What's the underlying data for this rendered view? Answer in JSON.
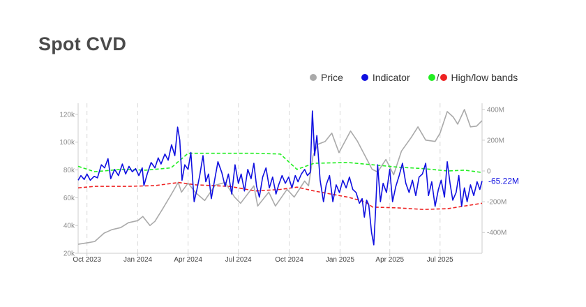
{
  "title": "Spot CVD",
  "legend": {
    "price": "Price",
    "indicator": "Indicator",
    "bands_slash": "/",
    "bands": "High/low bands"
  },
  "colors": {
    "price": "#aaaaaa",
    "indicator": "#1010e0",
    "band_high": "#22ee22",
    "band_low": "#ee2222",
    "axis": "#cccccc",
    "vgrid": "#d8d8d8"
  },
  "chart_data": {
    "type": "line",
    "x_ticks": [
      {
        "label": "Oct 2023",
        "date": "2023-10-01"
      },
      {
        "label": "Jan 2024",
        "date": "2024-01-01"
      },
      {
        "label": "Apr 2024",
        "date": "2024-04-01"
      },
      {
        "label": "Jul 2024",
        "date": "2024-07-01"
      },
      {
        "label": "Oct 2024",
        "date": "2024-10-01"
      },
      {
        "label": "Jan 2025",
        "date": "2025-01-01"
      },
      {
        "label": "Apr 2025",
        "date": "2025-04-01"
      },
      {
        "label": "Jul 2025",
        "date": "2025-07-01"
      }
    ],
    "x_range": [
      "2023-09-15",
      "2025-09-15"
    ],
    "left_axis": {
      "ticks": [
        {
          "label": "20k",
          "value": 20000
        },
        {
          "label": "40k",
          "value": 40000
        },
        {
          "label": "60k",
          "value": 60000
        },
        {
          "label": "80k",
          "value": 80000
        },
        {
          "label": "100k",
          "value": 100000
        },
        {
          "label": "120k",
          "value": 120000
        }
      ],
      "range": [
        20000,
        128000
      ]
    },
    "right_axis": {
      "ticks": [
        {
          "label": "400M",
          "value": 400
        },
        {
          "label": "200M",
          "value": 200
        },
        {
          "label": "0",
          "value": 0
        },
        {
          "label": "-200M",
          "value": -200
        },
        {
          "label": "-400M",
          "value": -400
        }
      ],
      "range": [
        -535,
        440
      ],
      "unit": "M"
    },
    "last_value_label": "-65.22M",
    "series": [
      {
        "name": "Price",
        "axis": "left",
        "points": [
          [
            "2023-09-15",
            26500
          ],
          [
            "2023-10-01",
            27500
          ],
          [
            "2023-10-15",
            28500
          ],
          [
            "2023-11-01",
            34500
          ],
          [
            "2023-11-15",
            37000
          ],
          [
            "2023-12-01",
            38500
          ],
          [
            "2023-12-15",
            42000
          ],
          [
            "2024-01-01",
            43500
          ],
          [
            "2024-01-10",
            46500
          ],
          [
            "2024-01-23",
            40000
          ],
          [
            "2024-02-01",
            43000
          ],
          [
            "2024-02-15",
            52000
          ],
          [
            "2024-03-01",
            62000
          ],
          [
            "2024-03-14",
            71000
          ],
          [
            "2024-03-20",
            64000
          ],
          [
            "2024-04-01",
            70500
          ],
          [
            "2024-04-15",
            63500
          ],
          [
            "2024-05-01",
            58000
          ],
          [
            "2024-05-20",
            69000
          ],
          [
            "2024-06-07",
            71000
          ],
          [
            "2024-06-24",
            60500
          ],
          [
            "2024-07-05",
            56000
          ],
          [
            "2024-07-29",
            68500
          ],
          [
            "2024-08-05",
            54000
          ],
          [
            "2024-08-25",
            64000
          ],
          [
            "2024-09-06",
            54000
          ],
          [
            "2024-09-27",
            66000
          ],
          [
            "2024-10-10",
            60500
          ],
          [
            "2024-10-29",
            72000
          ],
          [
            "2024-11-05",
            68500
          ],
          [
            "2024-11-13",
            90000
          ],
          [
            "2024-11-22",
            98500
          ],
          [
            "2024-12-05",
            100500
          ],
          [
            "2024-12-17",
            106500
          ],
          [
            "2024-12-30",
            92500
          ],
          [
            "2025-01-20",
            108000
          ],
          [
            "2025-02-01",
            101000
          ],
          [
            "2025-02-28",
            80500
          ],
          [
            "2025-03-10",
            78500
          ],
          [
            "2025-03-25",
            87500
          ],
          [
            "2025-04-08",
            76500
          ],
          [
            "2025-04-22",
            93500
          ],
          [
            "2025-05-10",
            103500
          ],
          [
            "2025-05-22",
            111000
          ],
          [
            "2025-06-05",
            101500
          ],
          [
            "2025-06-22",
            100500
          ],
          [
            "2025-07-01",
            106500
          ],
          [
            "2025-07-14",
            122000
          ],
          [
            "2025-07-25",
            118000
          ],
          [
            "2025-08-02",
            113000
          ],
          [
            "2025-08-14",
            123500
          ],
          [
            "2025-08-25",
            111000
          ],
          [
            "2025-09-05",
            111500
          ],
          [
            "2025-09-15",
            115500
          ]
        ]
      },
      {
        "name": "Indicator",
        "axis": "right",
        "points": [
          [
            "2023-09-15",
            -60
          ],
          [
            "2023-09-20",
            -30
          ],
          [
            "2023-09-26",
            -55
          ],
          [
            "2023-10-01",
            -20
          ],
          [
            "2023-10-07",
            -60
          ],
          [
            "2023-10-14",
            -35
          ],
          [
            "2023-10-20",
            -45
          ],
          [
            "2023-10-27",
            40
          ],
          [
            "2023-11-02",
            20
          ],
          [
            "2023-11-08",
            80
          ],
          [
            "2023-11-13",
            -50
          ],
          [
            "2023-11-20",
            10
          ],
          [
            "2023-11-27",
            -30
          ],
          [
            "2023-12-04",
            45
          ],
          [
            "2023-12-10",
            -20
          ],
          [
            "2023-12-16",
            30
          ],
          [
            "2023-12-22",
            -5
          ],
          [
            "2023-12-28",
            15
          ],
          [
            "2024-01-03",
            -30
          ],
          [
            "2024-01-09",
            20
          ],
          [
            "2024-01-12",
            -95
          ],
          [
            "2024-01-18",
            -20
          ],
          [
            "2024-01-25",
            55
          ],
          [
            "2024-02-01",
            20
          ],
          [
            "2024-02-07",
            85
          ],
          [
            "2024-02-12",
            45
          ],
          [
            "2024-02-19",
            110
          ],
          [
            "2024-02-25",
            70
          ],
          [
            "2024-03-02",
            170
          ],
          [
            "2024-03-08",
            100
          ],
          [
            "2024-03-13",
            285
          ],
          [
            "2024-03-17",
            200
          ],
          [
            "2024-03-21",
            -60
          ],
          [
            "2024-03-26",
            40
          ],
          [
            "2024-04-01",
            10
          ],
          [
            "2024-04-06",
            120
          ],
          [
            "2024-04-12",
            -200
          ],
          [
            "2024-04-17",
            -120
          ],
          [
            "2024-04-22",
            -30
          ],
          [
            "2024-04-28",
            100
          ],
          [
            "2024-05-03",
            -70
          ],
          [
            "2024-05-08",
            -20
          ],
          [
            "2024-05-13",
            -180
          ],
          [
            "2024-05-19",
            -60
          ],
          [
            "2024-05-25",
            60
          ],
          [
            "2024-06-01",
            -10
          ],
          [
            "2024-06-07",
            -100
          ],
          [
            "2024-06-13",
            -20
          ],
          [
            "2024-06-19",
            -150
          ],
          [
            "2024-06-25",
            40
          ],
          [
            "2024-07-01",
            -80
          ],
          [
            "2024-07-06",
            -20
          ],
          [
            "2024-07-12",
            -130
          ],
          [
            "2024-07-18",
            10
          ],
          [
            "2024-07-24",
            -50
          ],
          [
            "2024-07-29",
            50
          ],
          [
            "2024-08-03",
            -100
          ],
          [
            "2024-08-08",
            -170
          ],
          [
            "2024-08-14",
            -40
          ],
          [
            "2024-08-20",
            20
          ],
          [
            "2024-08-26",
            -110
          ],
          [
            "2024-09-01",
            -40
          ],
          [
            "2024-09-07",
            -150
          ],
          [
            "2024-09-12",
            -90
          ],
          [
            "2024-09-18",
            -30
          ],
          [
            "2024-09-24",
            -80
          ],
          [
            "2024-09-30",
            -40
          ],
          [
            "2024-10-06",
            -110
          ],
          [
            "2024-10-12",
            -30
          ],
          [
            "2024-10-17",
            -70
          ],
          [
            "2024-10-23",
            -20
          ],
          [
            "2024-10-29",
            10
          ],
          [
            "2024-11-03",
            -30
          ],
          [
            "2024-11-08",
            -10
          ],
          [
            "2024-11-12",
            390
          ],
          [
            "2024-11-16",
            100
          ],
          [
            "2024-11-20",
            230
          ],
          [
            "2024-11-26",
            -60
          ],
          [
            "2024-12-02",
            -200
          ],
          [
            "2024-12-07",
            -90
          ],
          [
            "2024-12-13",
            -30
          ],
          [
            "2024-12-19",
            -200
          ],
          [
            "2024-12-25",
            -90
          ],
          [
            "2024-12-31",
            -140
          ],
          [
            "2025-01-06",
            -60
          ],
          [
            "2025-01-12",
            -110
          ],
          [
            "2025-01-18",
            -40
          ],
          [
            "2025-01-24",
            -120
          ],
          [
            "2025-01-30",
            -140
          ],
          [
            "2025-02-05",
            -210
          ],
          [
            "2025-02-10",
            -180
          ],
          [
            "2025-02-14",
            -300
          ],
          [
            "2025-02-18",
            -190
          ],
          [
            "2025-02-22",
            -220
          ],
          [
            "2025-02-27",
            -400
          ],
          [
            "2025-03-03",
            -480
          ],
          [
            "2025-03-06",
            -280
          ],
          [
            "2025-03-10",
            40
          ],
          [
            "2025-03-15",
            -200
          ],
          [
            "2025-03-20",
            -80
          ],
          [
            "2025-03-26",
            -140
          ],
          [
            "2025-04-01",
            10
          ],
          [
            "2025-04-06",
            -200
          ],
          [
            "2025-04-12",
            -100
          ],
          [
            "2025-04-18",
            -30
          ],
          [
            "2025-04-24",
            50
          ],
          [
            "2025-04-30",
            -80
          ],
          [
            "2025-05-06",
            -140
          ],
          [
            "2025-05-12",
            -60
          ],
          [
            "2025-05-18",
            -160
          ],
          [
            "2025-05-24",
            -40
          ],
          [
            "2025-05-30",
            -20
          ],
          [
            "2025-06-05",
            50
          ],
          [
            "2025-06-10",
            -160
          ],
          [
            "2025-06-16",
            -70
          ],
          [
            "2025-06-22",
            -230
          ],
          [
            "2025-06-28",
            -120
          ],
          [
            "2025-07-03",
            -60
          ],
          [
            "2025-07-09",
            -170
          ],
          [
            "2025-07-14",
            60
          ],
          [
            "2025-07-19",
            -80
          ],
          [
            "2025-07-24",
            -190
          ],
          [
            "2025-07-30",
            -140
          ],
          [
            "2025-08-04",
            -30
          ],
          [
            "2025-08-09",
            -230
          ],
          [
            "2025-08-14",
            -110
          ],
          [
            "2025-08-19",
            -200
          ],
          [
            "2025-08-25",
            -90
          ],
          [
            "2025-08-31",
            -160
          ],
          [
            "2025-09-06",
            -70
          ],
          [
            "2025-09-11",
            -120
          ],
          [
            "2025-09-15",
            -65
          ]
        ]
      },
      {
        "name": "High band",
        "axis": "right",
        "points": [
          [
            "2023-09-15",
            30
          ],
          [
            "2023-10-15",
            -5
          ],
          [
            "2023-12-01",
            10
          ],
          [
            "2024-01-15",
            5
          ],
          [
            "2024-03-01",
            20
          ],
          [
            "2024-04-01",
            115
          ],
          [
            "2024-06-01",
            115
          ],
          [
            "2024-08-01",
            115
          ],
          [
            "2024-09-15",
            110
          ],
          [
            "2024-10-15",
            10
          ],
          [
            "2024-11-15",
            50
          ],
          [
            "2025-01-15",
            55
          ],
          [
            "2025-03-01",
            40
          ],
          [
            "2025-04-15",
            25
          ],
          [
            "2025-06-01",
            15
          ],
          [
            "2025-07-15",
            0
          ],
          [
            "2025-08-15",
            5
          ],
          [
            "2025-09-15",
            -10
          ]
        ]
      },
      {
        "name": "Low band",
        "axis": "right",
        "points": [
          [
            "2023-09-15",
            -110
          ],
          [
            "2023-10-15",
            -100
          ],
          [
            "2023-12-15",
            -100
          ],
          [
            "2024-02-01",
            -95
          ],
          [
            "2024-03-15",
            -75
          ],
          [
            "2024-04-15",
            -90
          ],
          [
            "2024-06-15",
            -100
          ],
          [
            "2024-08-01",
            -130
          ],
          [
            "2024-09-15",
            -120
          ],
          [
            "2024-10-15",
            -105
          ],
          [
            "2024-11-15",
            -130
          ],
          [
            "2024-12-15",
            -150
          ],
          [
            "2025-01-15",
            -170
          ],
          [
            "2025-02-15",
            -200
          ],
          [
            "2025-03-01",
            -235
          ],
          [
            "2025-04-15",
            -240
          ],
          [
            "2025-06-01",
            -250
          ],
          [
            "2025-07-15",
            -245
          ],
          [
            "2025-09-15",
            -210
          ]
        ]
      }
    ],
    "grid": "vertical dashed lines at x ticks",
    "legend_position": "top-right"
  }
}
